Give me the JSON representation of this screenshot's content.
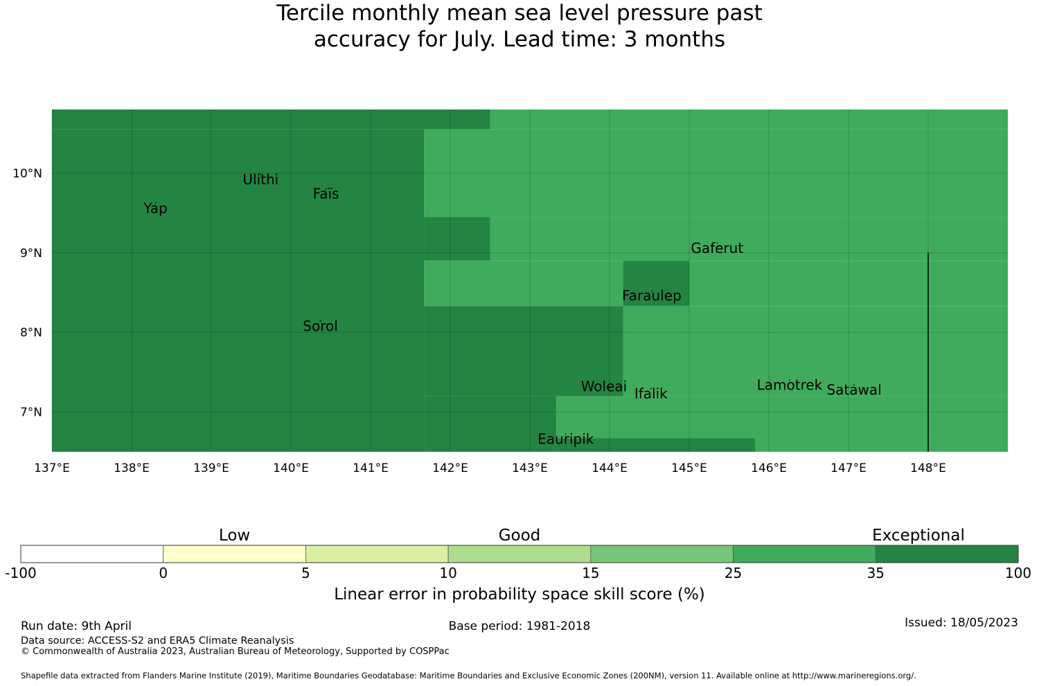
{
  "title": {
    "line1": "Tercile monthly mean sea level pressure past",
    "line2": "accuracy for July. Lead time: 3 months"
  },
  "map": {
    "lon_range": [
      137,
      149
    ],
    "lat_range": [
      6.5,
      10.8
    ],
    "lon_ticks": [
      {
        "value": 137,
        "label": "137°E"
      },
      {
        "value": 138,
        "label": "138°E"
      },
      {
        "value": 139,
        "label": "139°E"
      },
      {
        "value": 140,
        "label": "140°E"
      },
      {
        "value": 141,
        "label": "141°E"
      },
      {
        "value": 142,
        "label": "142°E"
      },
      {
        "value": 143,
        "label": "143°E"
      },
      {
        "value": 144,
        "label": "144°E"
      },
      {
        "value": 145,
        "label": "145°E"
      },
      {
        "value": 146,
        "label": "146°E"
      },
      {
        "value": 147,
        "label": "147°E"
      },
      {
        "value": 148,
        "label": "148°E"
      }
    ],
    "lat_ticks": [
      {
        "value": 7,
        "label": "7°N"
      },
      {
        "value": 8,
        "label": "8°N"
      },
      {
        "value": 9,
        "label": "9°N"
      },
      {
        "value": 10,
        "label": "10°N"
      }
    ],
    "skill_regions": [
      {
        "lon": [
          137.0,
          142.5
        ],
        "lat": [
          10.55,
          10.8
        ],
        "category": "35 to 100"
      },
      {
        "lon": [
          142.5,
          149.0
        ],
        "lat": [
          10.55,
          10.8
        ],
        "category": "25 to 35"
      },
      {
        "lon": [
          137.0,
          141.67
        ],
        "lat": [
          6.5,
          10.55
        ],
        "category": "35 to 100"
      },
      {
        "lon": [
          141.67,
          149.0
        ],
        "lat": [
          9.45,
          10.55
        ],
        "category": "25 to 35"
      },
      {
        "lon": [
          141.67,
          142.5
        ],
        "lat": [
          8.9,
          9.45
        ],
        "category": "35 to 100"
      },
      {
        "lon": [
          142.5,
          149.0
        ],
        "lat": [
          8.9,
          9.45
        ],
        "category": "25 to 35"
      },
      {
        "lon": [
          141.67,
          144.17
        ],
        "lat": [
          8.33,
          8.9
        ],
        "category": "25 to 35"
      },
      {
        "lon": [
          144.17,
          145.0
        ],
        "lat": [
          8.33,
          8.9
        ],
        "category": "35 to 100"
      },
      {
        "lon": [
          145.0,
          149.0
        ],
        "lat": [
          8.33,
          8.9
        ],
        "category": "25 to 35"
      },
      {
        "lon": [
          141.67,
          144.17
        ],
        "lat": [
          7.2,
          8.33
        ],
        "category": "35 to 100"
      },
      {
        "lon": [
          144.17,
          149.0
        ],
        "lat": [
          7.2,
          8.33
        ],
        "category": "25 to 35"
      },
      {
        "lon": [
          141.67,
          143.33
        ],
        "lat": [
          6.5,
          7.2
        ],
        "category": "35 to 100"
      },
      {
        "lon": [
          143.33,
          149.0
        ],
        "lat": [
          6.67,
          7.2
        ],
        "category": "25 to 35"
      },
      {
        "lon": [
          143.33,
          145.83
        ],
        "lat": [
          6.5,
          6.67
        ],
        "category": "35 to 100"
      },
      {
        "lon": [
          145.83,
          149.0
        ],
        "lat": [
          6.5,
          6.67
        ],
        "category": "25 to 35"
      }
    ],
    "boundary_line": {
      "lon": 148.0,
      "lat": [
        6.5,
        9.0
      ]
    },
    "places": [
      {
        "name": "Yap",
        "lon": 138.3,
        "lat": 9.5
      },
      {
        "name": "Ulithi",
        "lon": 139.62,
        "lat": 9.86
      },
      {
        "name": "Faïs",
        "lon": 140.44,
        "lat": 9.68
      },
      {
        "name": "Gaferut",
        "lon": 145.35,
        "lat": 9.0
      },
      {
        "name": "Faraulep",
        "lon": 144.53,
        "lat": 8.4
      },
      {
        "name": "Sorol",
        "lon": 140.37,
        "lat": 8.02
      },
      {
        "name": "Woleai",
        "lon": 143.93,
        "lat": 7.26
      },
      {
        "name": "Ifalik",
        "lon": 144.52,
        "lat": 7.17
      },
      {
        "name": "Lamotrek",
        "lon": 146.26,
        "lat": 7.28
      },
      {
        "name": "Satawal",
        "lon": 147.07,
        "lat": 7.22
      },
      {
        "name": "Eauripik",
        "lon": 143.45,
        "lat": 6.6
      }
    ]
  },
  "colorbar": {
    "bins": [
      {
        "from": "-100",
        "to": "0",
        "color": "#ffffff"
      },
      {
        "from": "0",
        "to": "5",
        "color": "#ffffcc"
      },
      {
        "from": "5",
        "to": "10",
        "color": "#d9f0a3"
      },
      {
        "from": "10",
        "to": "15",
        "color": "#addd8e"
      },
      {
        "from": "15",
        "to": "25",
        "color": "#78c679"
      },
      {
        "from": "25",
        "to": "35",
        "color": "#41ab5d"
      },
      {
        "from": "35",
        "to": "100",
        "color": "#238443"
      }
    ],
    "tick_labels": [
      "-100",
      "0",
      "5",
      "10",
      "15",
      "25",
      "35",
      "100"
    ],
    "categories": [
      {
        "label": "Low",
        "bin_center": 1.5
      },
      {
        "label": "Good",
        "bin_center": 3.5
      },
      {
        "label": "Exceptional",
        "bin_center": 6.3
      }
    ],
    "label": "Linear error in probability space skill score (%)"
  },
  "footer": {
    "run_date": "Run date: 9th April",
    "base_period": "Base period: 1981-2018",
    "issued": "Issued: 18/05/2023",
    "data_source": "Data source: ACCESS-S2 and ERA5 Climate Reanalysis",
    "copyright": "© Commonwealth of Australia 2023, Australian Bureau of Meteorology, Supported by COSPPac",
    "shapefile": "Shapefile data extracted from Flanders Marine Institute (2019), Maritime Boundaries Geodatabase: Maritime Boundaries and Exclusive Economic Zones (200NM), version 11. Available online at http://www.marineregions.org/."
  }
}
